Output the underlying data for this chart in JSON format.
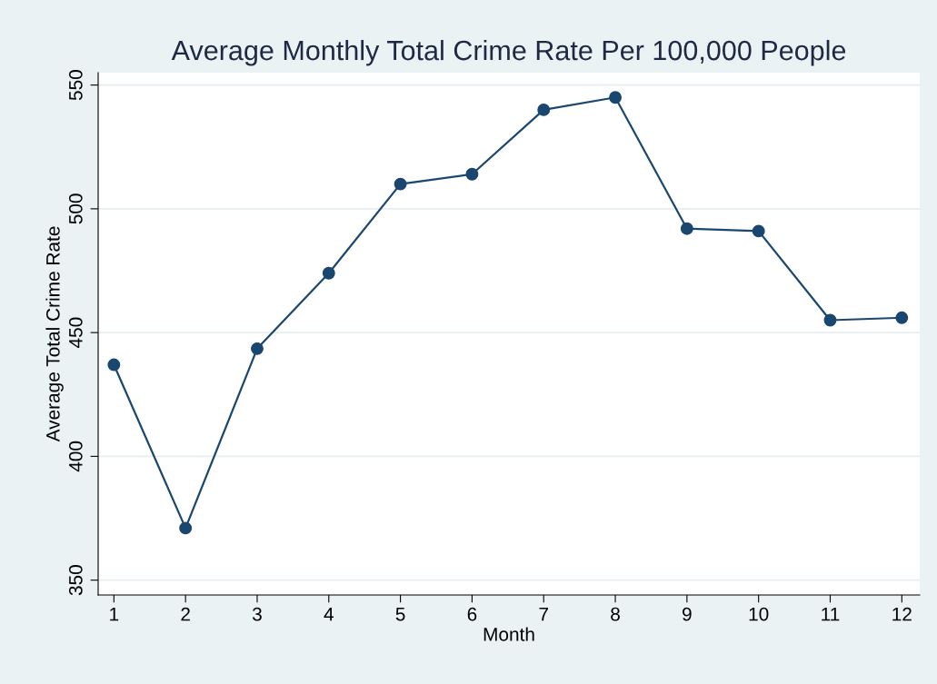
{
  "chart_data": {
    "type": "line",
    "title": "Average Monthly Total Crime Rate Per 100,000 People",
    "xlabel": "Month",
    "ylabel": "Average Total Crime Rate",
    "x": [
      1,
      2,
      3,
      4,
      5,
      6,
      7,
      8,
      9,
      10,
      11,
      12
    ],
    "series": [
      {
        "color": "#1a476f",
        "values": [
          437,
          371,
          443.5,
          474,
          510,
          514,
          540,
          545,
          492,
          491,
          455,
          456
        ]
      }
    ],
    "xlim": [
      0.78,
      12.25
    ],
    "xticks": [
      1,
      2,
      3,
      4,
      5,
      6,
      7,
      8,
      9,
      10,
      11,
      12
    ],
    "ylim": [
      344,
      555
    ],
    "yticks": [
      350,
      400,
      450,
      500,
      550
    ],
    "grid": "y",
    "marker": "circle",
    "line_style": "solid",
    "legend": false
  }
}
